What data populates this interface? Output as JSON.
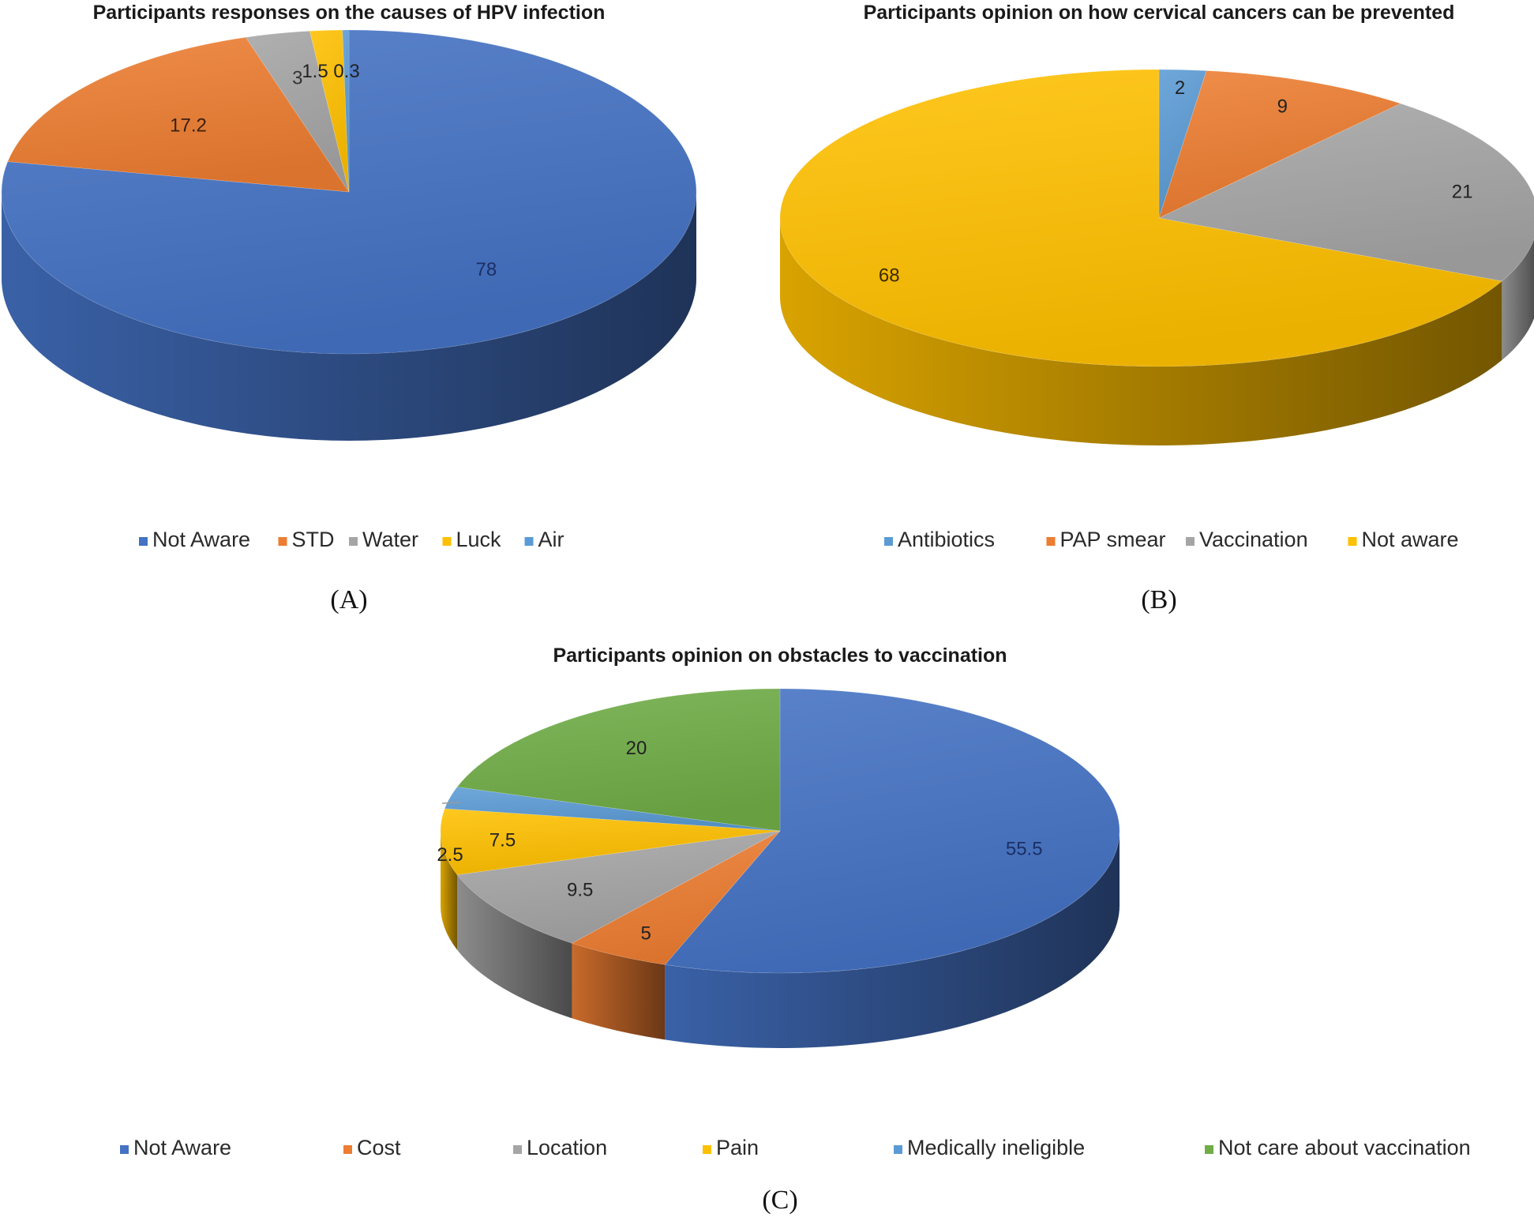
{
  "colors": {
    "blue": "#4472C4",
    "orange": "#ED7D31",
    "gray": "#A5A5A5",
    "yellow": "#FFC000",
    "lightblue": "#5B9BD5",
    "green": "#70AD47"
  },
  "chart_data": [
    {
      "type": "pie",
      "style": "3d",
      "panel_caption": "(A)",
      "title": "Participants responses on the causes of HPV infection",
      "categories": [
        "Not Aware",
        "STD",
        "Water",
        "Luck",
        "Air"
      ],
      "values": [
        78,
        17.2,
        3,
        1.5,
        0.3
      ],
      "data_labels": [
        "78",
        "17.2",
        "3",
        "1.5",
        "0.3"
      ],
      "colors": [
        "#4472C4",
        "#ED7D31",
        "#A5A5A5",
        "#FFC000",
        "#5B9BD5"
      ],
      "legend_position": "bottom"
    },
    {
      "type": "pie",
      "style": "3d",
      "panel_caption": "(B)",
      "title": "Participants opinion on how cervical cancers can be prevented",
      "categories": [
        "Antibiotics",
        "PAP smear",
        "Vaccination",
        "Not aware"
      ],
      "values": [
        2,
        9,
        21,
        68
      ],
      "data_labels": [
        "2",
        "9",
        "21",
        "68"
      ],
      "colors": [
        "#5B9BD5",
        "#ED7D31",
        "#A5A5A5",
        "#FFC000"
      ],
      "legend_position": "bottom"
    },
    {
      "type": "pie",
      "style": "3d",
      "panel_caption": "(C)",
      "title": "Participants opinion on obstacles to vaccination",
      "categories": [
        "Not Aware",
        "Cost",
        "Location",
        "Pain",
        "Medically ineligible",
        "Not care about vaccination"
      ],
      "values": [
        55.5,
        5,
        9.5,
        7.5,
        2.5,
        20
      ],
      "data_labels": [
        "55.5",
        "5",
        "9.5",
        "7.5",
        "2.5",
        "20"
      ],
      "colors": [
        "#4472C4",
        "#ED7D31",
        "#A5A5A5",
        "#FFC000",
        "#5B9BD5",
        "#70AD47"
      ],
      "legend_position": "bottom"
    }
  ]
}
